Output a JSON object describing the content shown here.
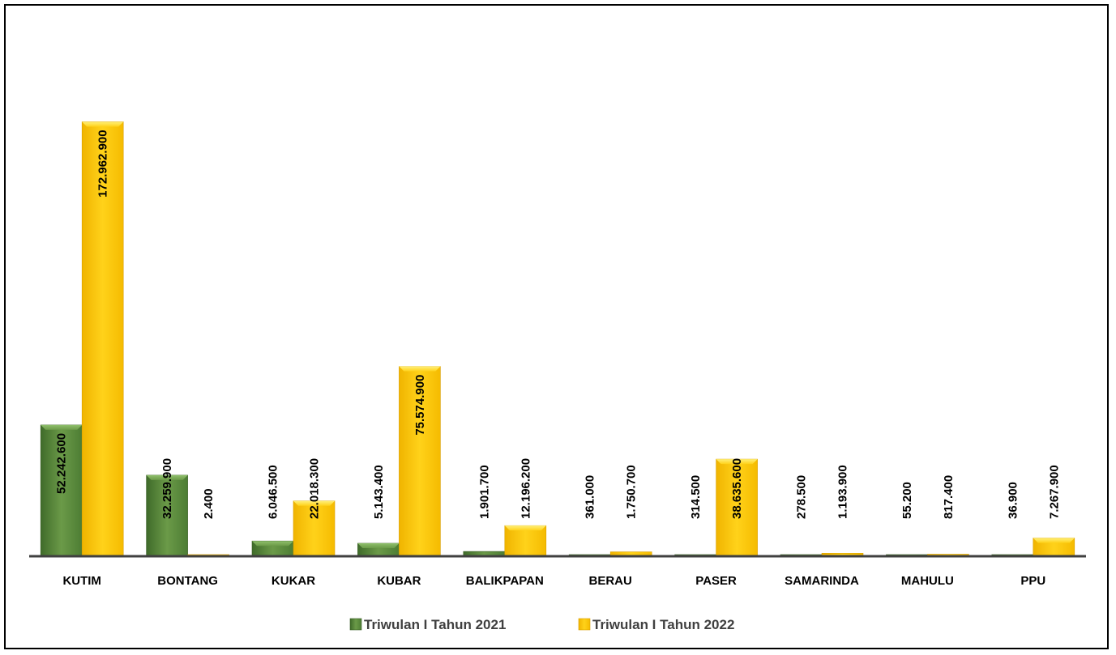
{
  "chart_data": {
    "type": "bar",
    "title": "",
    "xlabel": "",
    "ylabel": "",
    "ylim": [
      0,
      186000000
    ],
    "grid": false,
    "legend_position": "bottom",
    "categories": [
      "KUTIM",
      "BONTANG",
      "KUKAR",
      "KUBAR",
      "BALIKPAPAN",
      "BERAU",
      "PASER",
      "SAMARINDA",
      "MAHULU",
      "PPU"
    ],
    "series": [
      {
        "name": "Triwulan I Tahun 2021",
        "color": "#5a8a3a",
        "values": [
          52242600,
          32259900,
          6046500,
          5143400,
          1901700,
          361000,
          314500,
          278500,
          55200,
          36900
        ],
        "labels": [
          "52.242.600",
          "32.259.900",
          "6.046.500",
          "5.143.400",
          "1.901.700",
          "361.000",
          "314.500",
          "278.500",
          "55.200",
          "36.900"
        ]
      },
      {
        "name": "Triwulan I Tahun 2022",
        "color": "#ffc000",
        "values": [
          172962900,
          2400,
          22018300,
          75574900,
          12196200,
          1750700,
          38635600,
          1193900,
          817400,
          7267900
        ],
        "labels": [
          "172.962.900",
          "2.400",
          "22.018.300",
          "75.574.900",
          "12.196.200",
          "1.750.700",
          "38.635.600",
          "1.193.900",
          "817.400",
          "7.267.900"
        ]
      }
    ]
  }
}
